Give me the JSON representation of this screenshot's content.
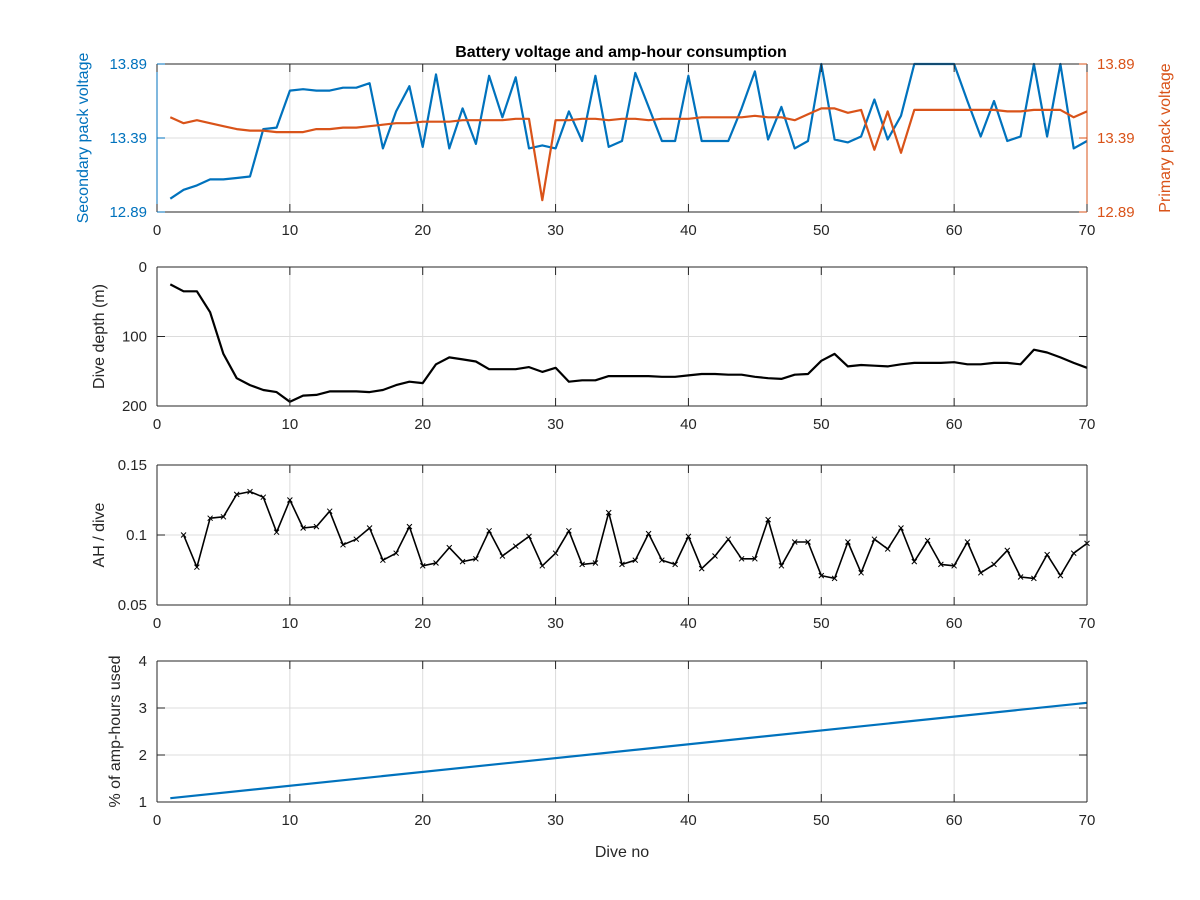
{
  "figure_title": "Battery voltage and amp-hour consumption",
  "colors": {
    "secondary": "#0072BD",
    "primary": "#D95319",
    "black": "#000000",
    "grid": "#dcdcdc",
    "axis": "#262626"
  },
  "chart_data": [
    {
      "type": "line",
      "title": "Battery voltage and amp-hour consumption",
      "xlabel": "",
      "ylabel": "Secondary pack voltage",
      "ylabel_right": "Primary pack voltage",
      "xlim": [
        0,
        70
      ],
      "ylim": [
        12.89,
        13.89
      ],
      "ylim_right": [
        12.89,
        13.89
      ],
      "xticks": [
        0,
        10,
        20,
        30,
        40,
        50,
        60,
        70
      ],
      "yticks": [
        12.89,
        13.39,
        13.89
      ],
      "grid": true,
      "x": [
        1,
        2,
        3,
        4,
        5,
        6,
        7,
        8,
        9,
        10,
        11,
        12,
        13,
        14,
        15,
        16,
        17,
        18,
        19,
        20,
        21,
        22,
        23,
        24,
        25,
        26,
        27,
        28,
        29,
        30,
        31,
        32,
        33,
        34,
        35,
        36,
        37,
        38,
        39,
        40,
        41,
        42,
        43,
        44,
        45,
        46,
        47,
        48,
        49,
        50,
        51,
        52,
        53,
        54,
        55,
        56,
        57,
        58,
        59,
        60,
        61,
        62,
        63,
        64,
        65,
        66,
        67,
        68,
        69,
        70
      ],
      "series": [
        {
          "name": "Secondary",
          "axis": "left",
          "color": "#0072BD",
          "values": [
            12.98,
            13.04,
            13.07,
            13.11,
            13.11,
            13.12,
            13.13,
            13.45,
            13.46,
            13.71,
            13.72,
            13.71,
            13.71,
            13.73,
            13.73,
            13.76,
            13.32,
            13.57,
            13.74,
            13.33,
            13.82,
            13.32,
            13.59,
            13.35,
            13.81,
            13.53,
            13.8,
            13.32,
            13.34,
            13.32,
            13.57,
            13.37,
            13.81,
            13.33,
            13.37,
            13.83,
            13.6,
            13.37,
            13.37,
            13.81,
            13.37,
            13.37,
            13.37,
            13.59,
            13.84,
            13.38,
            13.6,
            13.32,
            13.37,
            13.89,
            13.38,
            13.36,
            13.4,
            13.65,
            13.38,
            13.54,
            13.89,
            13.89,
            13.89,
            13.89,
            13.64,
            13.4,
            13.64,
            13.37,
            13.4,
            13.89,
            13.4,
            13.89,
            13.32,
            13.37
          ]
        },
        {
          "name": "Primary",
          "axis": "right",
          "color": "#D95319",
          "values": [
            13.53,
            13.49,
            13.51,
            13.49,
            13.47,
            13.45,
            13.44,
            13.44,
            13.43,
            13.43,
            13.43,
            13.45,
            13.45,
            13.46,
            13.46,
            13.47,
            13.48,
            13.49,
            13.49,
            13.5,
            13.5,
            13.5,
            13.51,
            13.51,
            13.51,
            13.51,
            13.52,
            13.52,
            12.97,
            13.51,
            13.51,
            13.52,
            13.52,
            13.51,
            13.52,
            13.52,
            13.51,
            13.52,
            13.52,
            13.52,
            13.53,
            13.53,
            13.53,
            13.53,
            13.54,
            13.53,
            13.53,
            13.51,
            13.55,
            13.59,
            13.59,
            13.56,
            13.58,
            13.31,
            13.57,
            13.29,
            13.58,
            13.58,
            13.58,
            13.58,
            13.58,
            13.58,
            13.58,
            13.57,
            13.57,
            13.58,
            13.58,
            13.58,
            13.53,
            13.57
          ]
        }
      ]
    },
    {
      "type": "line",
      "xlabel": "",
      "ylabel": "Dive depth (m)",
      "xlim": [
        0,
        70
      ],
      "ylim": [
        0,
        200
      ],
      "y_reversed": true,
      "xticks": [
        0,
        10,
        20,
        30,
        40,
        50,
        60,
        70
      ],
      "yticks": [
        0,
        100,
        200
      ],
      "grid": true,
      "x": [
        1,
        2,
        3,
        4,
        5,
        6,
        7,
        8,
        9,
        10,
        11,
        12,
        13,
        14,
        15,
        16,
        17,
        18,
        19,
        20,
        21,
        22,
        23,
        24,
        25,
        26,
        27,
        28,
        29,
        30,
        31,
        32,
        33,
        34,
        35,
        36,
        37,
        38,
        39,
        40,
        41,
        42,
        43,
        44,
        45,
        46,
        47,
        48,
        49,
        50,
        51,
        52,
        53,
        54,
        55,
        56,
        57,
        58,
        59,
        60,
        61,
        62,
        63,
        64,
        65,
        66,
        67,
        68,
        69,
        70
      ],
      "series": [
        {
          "color": "#000000",
          "values": [
            25,
            35,
            35,
            65,
            125,
            160,
            170,
            177,
            180,
            194,
            185,
            184,
            179,
            179,
            179,
            180,
            177,
            170,
            165,
            167,
            140,
            130,
            133,
            136,
            147,
            147,
            147,
            144,
            151,
            145,
            165,
            163,
            163,
            157,
            157,
            157,
            157,
            158,
            158,
            156,
            154,
            154,
            155,
            155,
            158,
            160,
            161,
            155,
            154,
            135,
            125,
            143,
            141,
            142,
            143,
            140,
            138,
            138,
            138,
            137,
            140,
            140,
            138,
            138,
            140,
            119,
            123,
            130,
            138,
            145
          ]
        }
      ]
    },
    {
      "type": "line",
      "xlabel": "",
      "ylabel": "AH / dive",
      "xlim": [
        0,
        70
      ],
      "ylim": [
        0.05,
        0.15
      ],
      "xticks": [
        0,
        10,
        20,
        30,
        40,
        50,
        60,
        70
      ],
      "yticks": [
        0.05,
        0.1,
        0.15
      ],
      "grid": true,
      "markers": "x",
      "x": [
        2,
        3,
        4,
        5,
        6,
        7,
        8,
        9,
        10,
        11,
        12,
        13,
        14,
        15,
        16,
        17,
        18,
        19,
        20,
        21,
        22,
        23,
        24,
        25,
        26,
        27,
        28,
        29,
        30,
        31,
        32,
        33,
        34,
        35,
        36,
        37,
        38,
        39,
        40,
        41,
        42,
        43,
        44,
        45,
        46,
        47,
        48,
        49,
        50,
        51,
        52,
        53,
        54,
        55,
        56,
        57,
        58,
        59,
        60,
        61,
        62,
        63,
        64,
        65,
        66,
        67,
        68,
        69,
        70
      ],
      "series": [
        {
          "color": "#000000",
          "values": [
            0.1,
            0.077,
            0.112,
            0.113,
            0.129,
            0.131,
            0.127,
            0.102,
            0.125,
            0.105,
            0.106,
            0.117,
            0.093,
            0.097,
            0.105,
            0.082,
            0.087,
            0.106,
            0.078,
            0.08,
            0.091,
            0.081,
            0.083,
            0.103,
            0.085,
            0.092,
            0.099,
            0.078,
            0.087,
            0.103,
            0.079,
            0.08,
            0.116,
            0.079,
            0.082,
            0.101,
            0.082,
            0.079,
            0.099,
            0.076,
            0.085,
            0.097,
            0.083,
            0.083,
            0.111,
            0.078,
            0.095,
            0.095,
            0.071,
            0.069,
            0.095,
            0.073,
            0.097,
            0.09,
            0.105,
            0.081,
            0.096,
            0.079,
            0.078,
            0.095,
            0.073,
            0.079,
            0.089,
            0.07,
            0.069,
            0.086,
            0.071,
            0.087,
            0.094
          ]
        }
      ]
    },
    {
      "type": "line",
      "xlabel": "Dive no",
      "ylabel": "% of amp-hours used",
      "xlim": [
        0,
        70
      ],
      "ylim": [
        1,
        4
      ],
      "xticks": [
        0,
        10,
        20,
        30,
        40,
        50,
        60,
        70
      ],
      "yticks": [
        1,
        2,
        3,
        4
      ],
      "grid": true,
      "x": [
        1,
        70
      ],
      "series": [
        {
          "color": "#0072BD",
          "values": [
            1.08,
            3.11
          ]
        }
      ]
    }
  ]
}
